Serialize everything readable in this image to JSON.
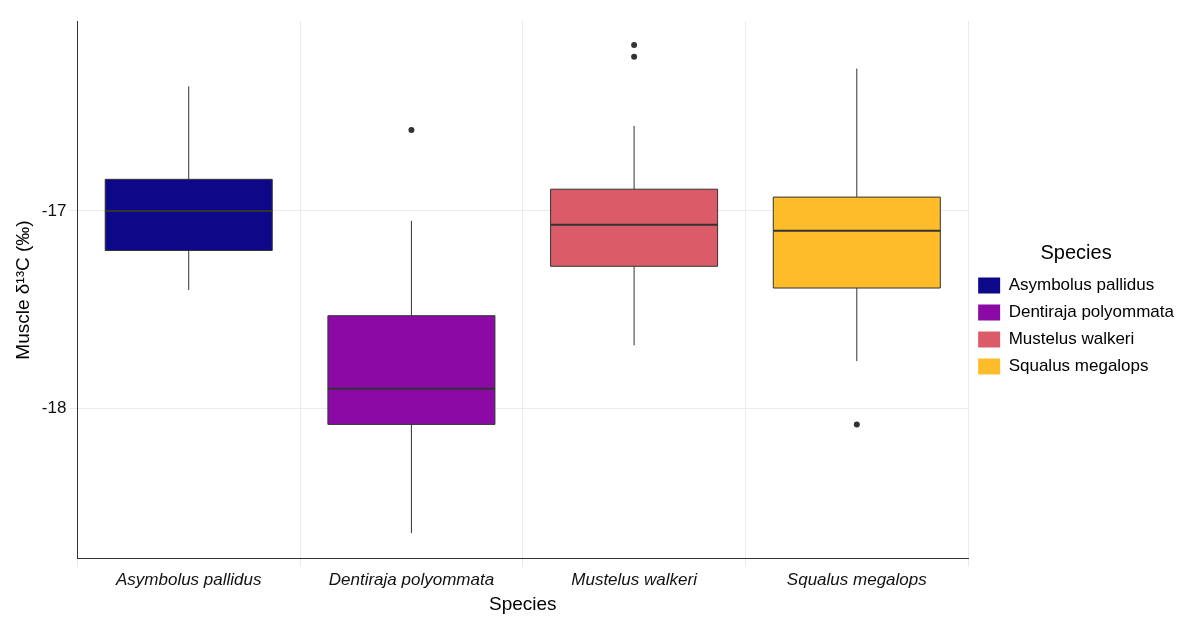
{
  "chart_data": {
    "type": "box",
    "xlabel": "Species",
    "ylabel": "Muscle δ¹³C (‰)",
    "categories": [
      "Asymbolus pallidus",
      "Dentiraja polyommata",
      "Mustelus walkeri",
      "Squalus megalops"
    ],
    "series": [
      {
        "name": "Asymbolus pallidus",
        "color": "#0d0887",
        "boxes": [
          {
            "low": -17.4,
            "q1": -17.2,
            "median": -17.0,
            "q3": -16.84,
            "high": -16.37
          },
          null,
          null,
          null
        ]
      },
      {
        "name": "Dentiraja polyommata",
        "color": "#8b0aa5",
        "boxes": [
          null,
          {
            "low": -18.63,
            "q1": -18.08,
            "median": -17.9,
            "q3": -17.53,
            "high": -17.05,
            "outliers": [
              -16.59
            ]
          },
          null,
          null
        ]
      },
      {
        "name": "Mustelus walkeri",
        "color": "#db5c68",
        "boxes": [
          null,
          null,
          {
            "low": -17.68,
            "q1": -17.28,
            "median": -17.07,
            "q3": -16.89,
            "high": -16.57,
            "outliers": [
              -16.16,
              -16.22
            ]
          },
          null
        ]
      },
      {
        "name": "Squalus megalops",
        "color": "#febc2a",
        "boxes": [
          null,
          null,
          null,
          {
            "low": -17.76,
            "q1": -17.39,
            "median": -17.1,
            "q3": -16.93,
            "high": -16.28,
            "outliers": [
              -18.08
            ]
          }
        ]
      }
    ],
    "ylim": [
      -18.76,
      -16.04
    ],
    "yticks": [
      -17,
      -18
    ],
    "grid": true,
    "legend": "right",
    "legend_title": "Species"
  }
}
